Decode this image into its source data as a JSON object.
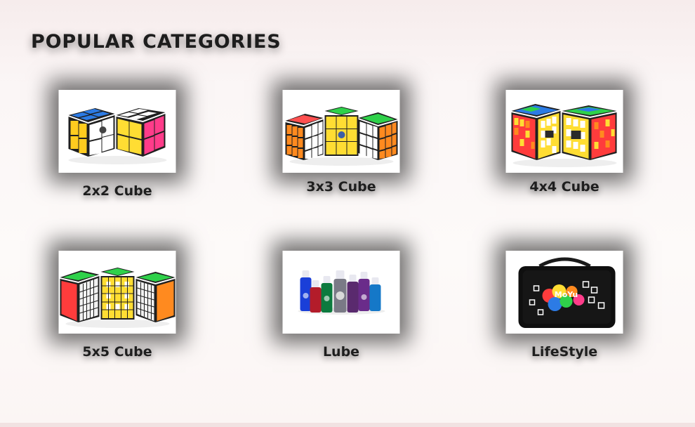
{
  "section": {
    "title": "POPULAR CATEGORIES"
  },
  "categories": [
    {
      "label": "2x2 Cube",
      "icon": "2x2-cube-image"
    },
    {
      "label": "3x3 Cube",
      "icon": "3x3-cube-image"
    },
    {
      "label": "4x4 Cube",
      "icon": "4x4-cube-image"
    },
    {
      "label": "5x5 Cube",
      "icon": "5x5-cube-image"
    },
    {
      "label": "Lube",
      "icon": "lube-bottles-image"
    },
    {
      "label": "LifeStyle",
      "icon": "cube-bag-image",
      "brand": "MoYu"
    }
  ]
}
